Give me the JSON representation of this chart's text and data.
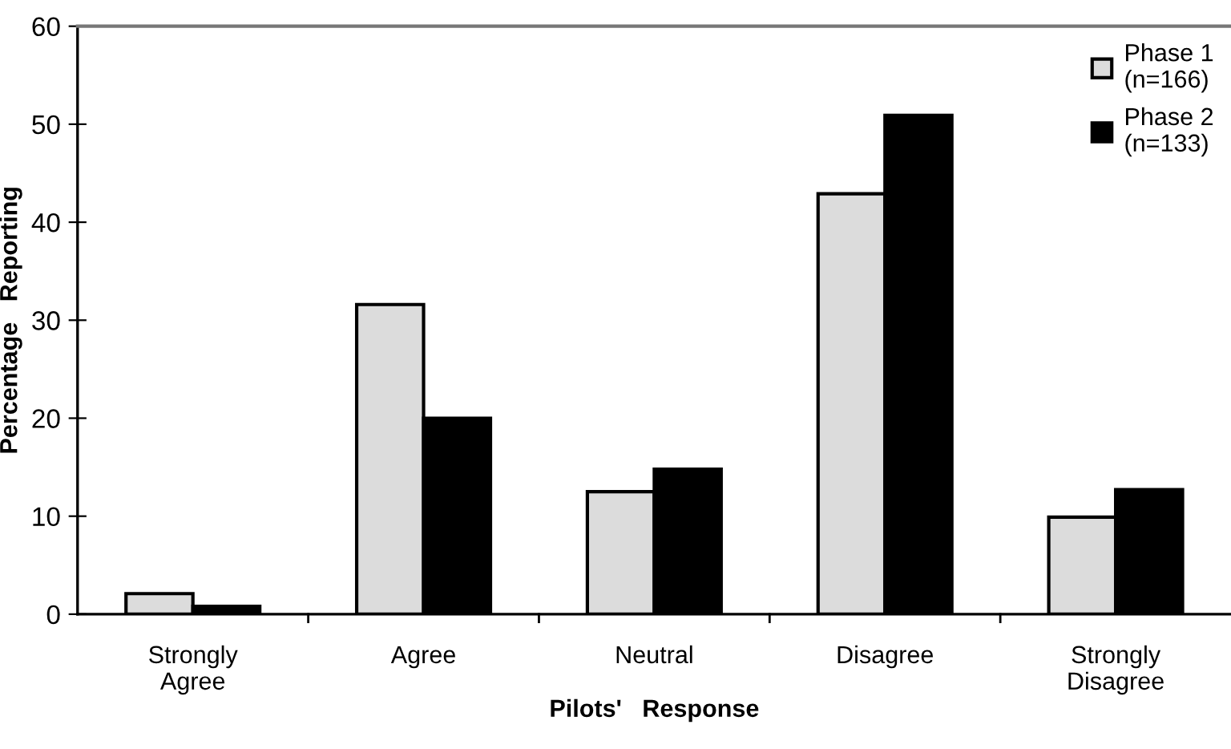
{
  "chart_data": {
    "type": "bar",
    "xlabel": "Pilots'   Response",
    "ylabel": "Percentage   Reporting",
    "categories": [
      "Strongly\nAgree",
      "Agree",
      "Neutral",
      "Disagree",
      "Strongly\nDisagree"
    ],
    "series": [
      {
        "name": "Phase 1\n(n=166)",
        "color": "#dcdcdc",
        "values": [
          2.1,
          31.6,
          12.5,
          42.9,
          9.9
        ]
      },
      {
        "name": "Phase 2\n(n=133)",
        "color": "#000000",
        "values": [
          0.8,
          20.0,
          14.8,
          50.9,
          12.7
        ]
      }
    ],
    "ylim": [
      0,
      60
    ],
    "yticks": [
      0,
      10,
      20,
      30,
      40,
      50,
      60
    ],
    "grid": false,
    "legend": "top right"
  }
}
